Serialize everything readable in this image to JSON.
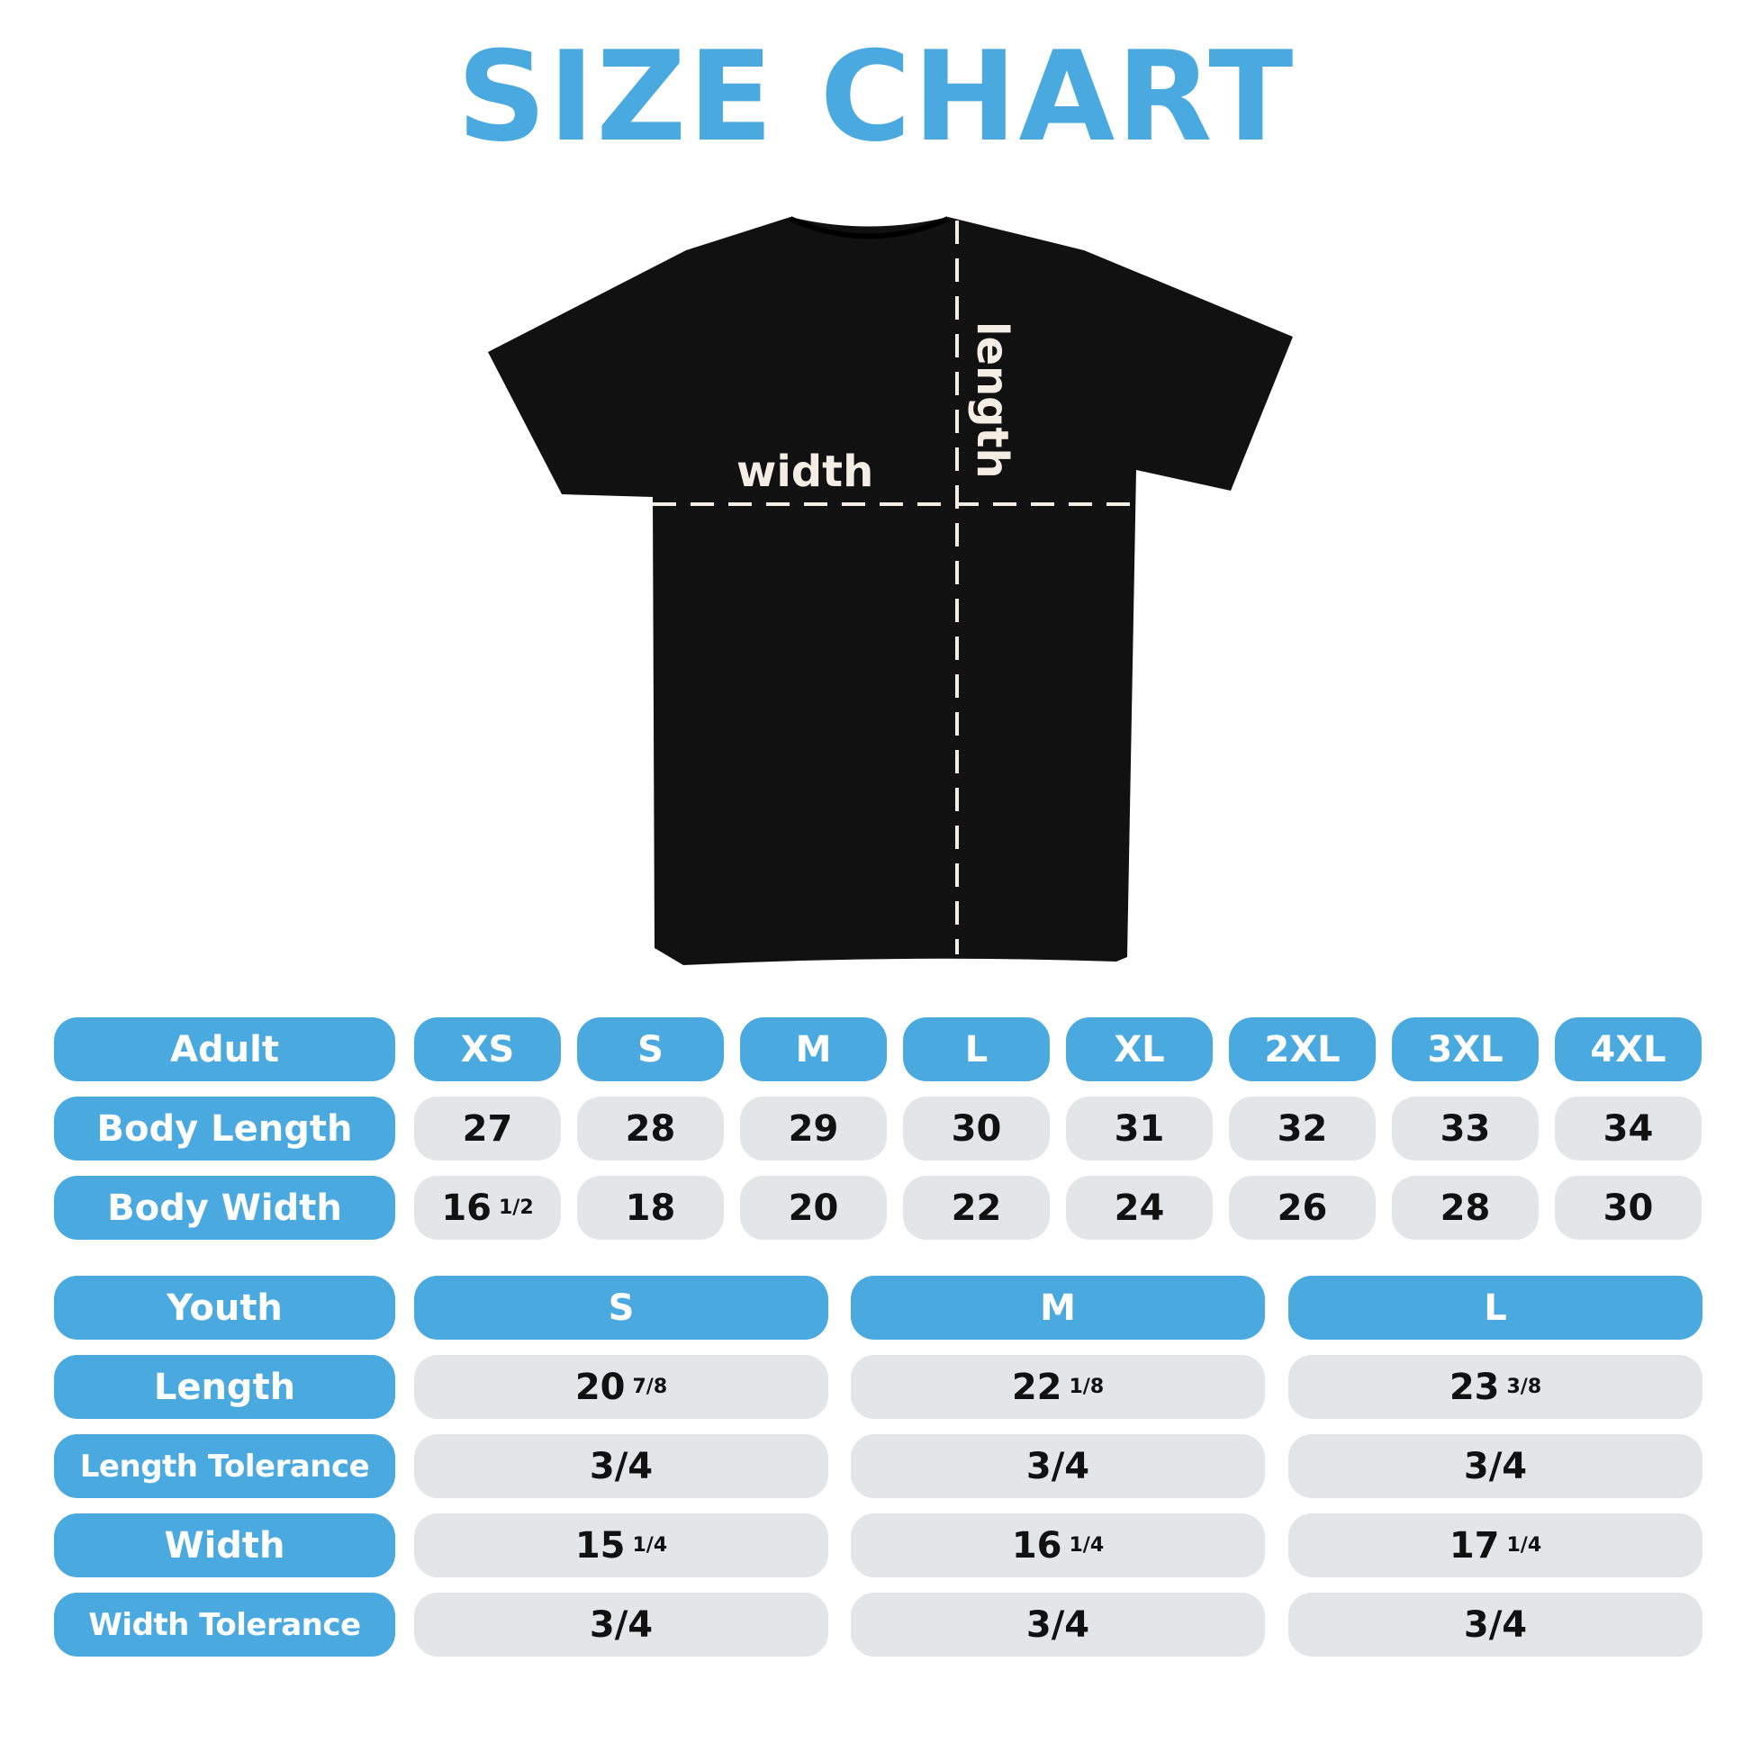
{
  "title": "SIZE CHART",
  "colors": {
    "accent": "#4aaae0",
    "cell_bg": "#e4e5e7",
    "shirt": "#111111"
  },
  "diagram": {
    "width_label": "width",
    "length_label": "length"
  },
  "adult": {
    "header": "Adult",
    "sizes": [
      "XS",
      "S",
      "M",
      "L",
      "XL",
      "2XL",
      "3XL",
      "4XL"
    ],
    "rows": [
      {
        "label": "Body Length",
        "values": [
          {
            "w": "27",
            "f": ""
          },
          {
            "w": "28",
            "f": ""
          },
          {
            "w": "29",
            "f": ""
          },
          {
            "w": "30",
            "f": ""
          },
          {
            "w": "31",
            "f": ""
          },
          {
            "w": "32",
            "f": ""
          },
          {
            "w": "33",
            "f": ""
          },
          {
            "w": "34",
            "f": ""
          }
        ]
      },
      {
        "label": "Body Width",
        "values": [
          {
            "w": "16",
            "f": "1/2"
          },
          {
            "w": "18",
            "f": ""
          },
          {
            "w": "20",
            "f": ""
          },
          {
            "w": "22",
            "f": ""
          },
          {
            "w": "24",
            "f": ""
          },
          {
            "w": "26",
            "f": ""
          },
          {
            "w": "28",
            "f": ""
          },
          {
            "w": "30",
            "f": ""
          }
        ]
      }
    ]
  },
  "youth": {
    "header": "Youth",
    "sizes": [
      "S",
      "M",
      "L"
    ],
    "rows": [
      {
        "label": "Length",
        "values": [
          {
            "w": "20",
            "f": "7/8"
          },
          {
            "w": "22",
            "f": "1/8"
          },
          {
            "w": "23",
            "f": "3/8"
          }
        ]
      },
      {
        "label": "Length Tolerance",
        "values": [
          {
            "w": "3/4",
            "f": ""
          },
          {
            "w": "3/4",
            "f": ""
          },
          {
            "w": "3/4",
            "f": ""
          }
        ]
      },
      {
        "label": "Width",
        "values": [
          {
            "w": "15",
            "f": "1/4"
          },
          {
            "w": "16",
            "f": "1/4"
          },
          {
            "w": "17",
            "f": "1/4"
          }
        ]
      },
      {
        "label": "Width Tolerance",
        "values": [
          {
            "w": "3/4",
            "f": ""
          },
          {
            "w": "3/4",
            "f": ""
          },
          {
            "w": "3/4",
            "f": ""
          }
        ]
      }
    ]
  }
}
